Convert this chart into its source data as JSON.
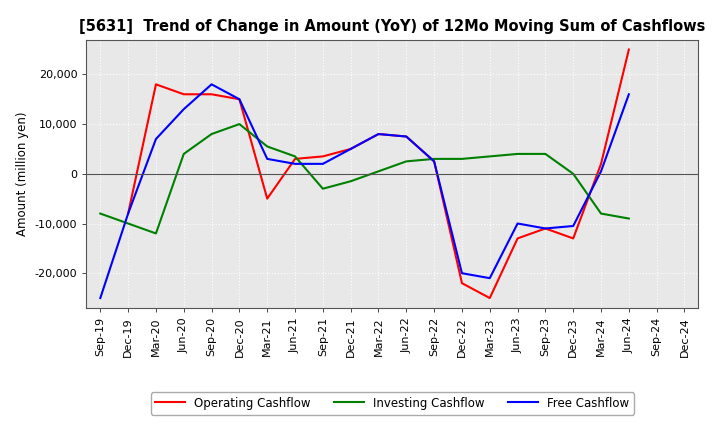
{
  "title": "[5631]  Trend of Change in Amount (YoY) of 12Mo Moving Sum of Cashflows",
  "ylabel": "Amount (million yen)",
  "x_labels": [
    "Sep-19",
    "Dec-19",
    "Mar-20",
    "Jun-20",
    "Sep-20",
    "Dec-20",
    "Mar-21",
    "Jun-21",
    "Sep-21",
    "Dec-21",
    "Mar-22",
    "Jun-22",
    "Sep-22",
    "Dec-22",
    "Mar-23",
    "Jun-23",
    "Sep-23",
    "Dec-23",
    "Mar-24",
    "Jun-24",
    "Sep-24",
    "Dec-24"
  ],
  "operating": [
    null,
    -8000,
    18000,
    16000,
    16000,
    15000,
    -5000,
    3000,
    3500,
    5000,
    8000,
    7500,
    2500,
    -22000,
    -25000,
    -13000,
    -11000,
    -13000,
    2000,
    25000,
    null,
    null
  ],
  "investing": [
    -8000,
    -10000,
    -12000,
    4000,
    8000,
    10000,
    5500,
    3500,
    -3000,
    -1500,
    500,
    2500,
    3000,
    3000,
    3500,
    4000,
    4000,
    0,
    -8000,
    -9000,
    null,
    null
  ],
  "free": [
    -25000,
    -8000,
    7000,
    13000,
    18000,
    15000,
    3000,
    2000,
    2000,
    5000,
    8000,
    7500,
    2500,
    -20000,
    -21000,
    -10000,
    -11000,
    -10500,
    500,
    16000,
    null,
    null
  ],
  "ylim": [
    -25000,
    25000
  ],
  "yticks": [
    -20000,
    -10000,
    0,
    10000,
    20000
  ],
  "colors": {
    "operating": "#ff0000",
    "investing": "#008000",
    "free": "#0000ff"
  },
  "plot_bg_color": "#e8e8e8",
  "fig_bg_color": "#ffffff",
  "grid_color": "#ffffff",
  "title_fontsize": 10.5,
  "axis_fontsize": 8.5,
  "tick_fontsize": 8,
  "legend_fontsize": 8.5
}
